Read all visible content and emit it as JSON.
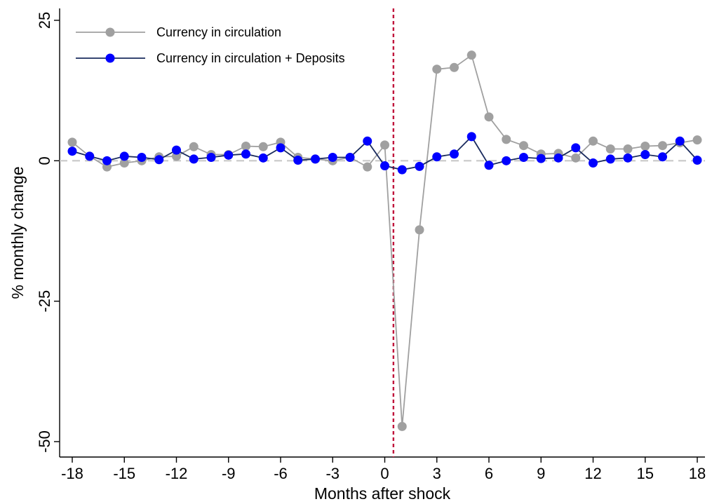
{
  "chart_data": {
    "type": "line",
    "xlabel": "Months after shock",
    "ylabel": "% monthly change",
    "xlim": [
      -18,
      18
    ],
    "ylim": [
      -50,
      25
    ],
    "xticks": [
      -18,
      -15,
      -12,
      -9,
      -6,
      -3,
      0,
      3,
      6,
      9,
      12,
      15,
      18
    ],
    "xtick_labels": [
      "-18",
      "-15",
      "-12",
      "-9",
      "-6",
      "-3",
      "0",
      "3",
      "6",
      "9",
      "12",
      "15",
      "18"
    ],
    "yticks": [
      -50,
      -25,
      0,
      25
    ],
    "ytick_labels": [
      "-50",
      "-25",
      "0",
      "25"
    ],
    "shock_line_x": 0.5,
    "zero_line": true,
    "grid": false,
    "legend_position": "top-left",
    "x": [
      -18,
      -17,
      -16,
      -15,
      -14,
      -13,
      -12,
      -11,
      -10,
      -9,
      -8,
      -7,
      -6,
      -5,
      -4,
      -3,
      -2,
      -1,
      0,
      1,
      2,
      3,
      4,
      5,
      6,
      7,
      8,
      9,
      10,
      11,
      12,
      13,
      14,
      15,
      16,
      17,
      18
    ],
    "series": [
      {
        "name": "Currency in circulation",
        "color": "#a0a0a0",
        "values": [
          3.3,
          0.8,
          -1.1,
          -0.4,
          0.0,
          0.7,
          0.8,
          2.5,
          1.1,
          1.1,
          2.6,
          2.5,
          3.3,
          0.6,
          0.3,
          0.0,
          0.6,
          -1.1,
          2.8,
          -47.3,
          -12.3,
          16.3,
          16.6,
          18.8,
          7.8,
          3.8,
          2.7,
          1.2,
          1.3,
          0.5,
          3.5,
          2.1,
          2.1,
          2.6,
          2.7,
          3.2,
          3.7
        ]
      },
      {
        "name": "Currency in circulation + Deposits",
        "color": "#0000ff",
        "line_color": "#1a2b5e",
        "values": [
          1.7,
          0.8,
          0.0,
          0.8,
          0.6,
          0.2,
          1.9,
          0.3,
          0.6,
          1.0,
          1.2,
          0.5,
          2.3,
          0.1,
          0.3,
          0.6,
          0.6,
          3.5,
          -0.9,
          -1.6,
          -1.0,
          0.7,
          1.2,
          4.3,
          -0.8,
          0.0,
          0.6,
          0.4,
          0.5,
          2.3,
          -0.4,
          0.3,
          0.5,
          1.1,
          0.7,
          3.5,
          0.1
        ]
      }
    ]
  }
}
